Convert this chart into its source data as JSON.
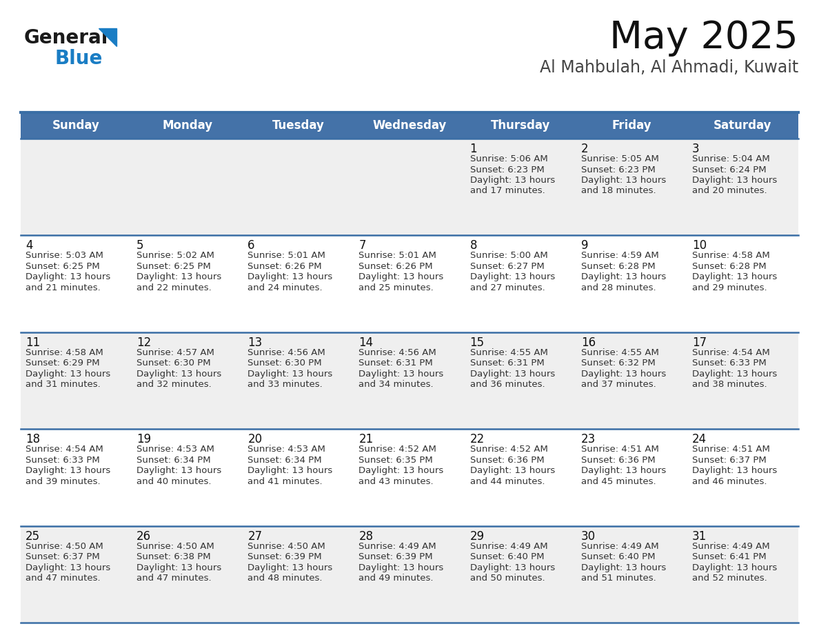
{
  "title": "May 2025",
  "subtitle": "Al Mahbulah, Al Ahmadi, Kuwait",
  "days_of_week": [
    "Sunday",
    "Monday",
    "Tuesday",
    "Wednesday",
    "Thursday",
    "Friday",
    "Saturday"
  ],
  "header_bg": "#4472a8",
  "header_text": "#ffffff",
  "cell_bg_odd": "#efefef",
  "cell_bg_even": "#ffffff",
  "grid_line_color": "#3a6ea5",
  "text_color": "#333333",
  "day_num_color": "#111111",
  "calendar_data": [
    [
      null,
      null,
      null,
      null,
      {
        "day": 1,
        "sunrise": "5:06 AM",
        "sunset": "6:23 PM",
        "daylight": "13 hours",
        "daylight2": "and 17 minutes."
      },
      {
        "day": 2,
        "sunrise": "5:05 AM",
        "sunset": "6:23 PM",
        "daylight": "13 hours",
        "daylight2": "and 18 minutes."
      },
      {
        "day": 3,
        "sunrise": "5:04 AM",
        "sunset": "6:24 PM",
        "daylight": "13 hours",
        "daylight2": "and 20 minutes."
      }
    ],
    [
      {
        "day": 4,
        "sunrise": "5:03 AM",
        "sunset": "6:25 PM",
        "daylight": "13 hours",
        "daylight2": "and 21 minutes."
      },
      {
        "day": 5,
        "sunrise": "5:02 AM",
        "sunset": "6:25 PM",
        "daylight": "13 hours",
        "daylight2": "and 22 minutes."
      },
      {
        "day": 6,
        "sunrise": "5:01 AM",
        "sunset": "6:26 PM",
        "daylight": "13 hours",
        "daylight2": "and 24 minutes."
      },
      {
        "day": 7,
        "sunrise": "5:01 AM",
        "sunset": "6:26 PM",
        "daylight": "13 hours",
        "daylight2": "and 25 minutes."
      },
      {
        "day": 8,
        "sunrise": "5:00 AM",
        "sunset": "6:27 PM",
        "daylight": "13 hours",
        "daylight2": "and 27 minutes."
      },
      {
        "day": 9,
        "sunrise": "4:59 AM",
        "sunset": "6:28 PM",
        "daylight": "13 hours",
        "daylight2": "and 28 minutes."
      },
      {
        "day": 10,
        "sunrise": "4:58 AM",
        "sunset": "6:28 PM",
        "daylight": "13 hours",
        "daylight2": "and 29 minutes."
      }
    ],
    [
      {
        "day": 11,
        "sunrise": "4:58 AM",
        "sunset": "6:29 PM",
        "daylight": "13 hours",
        "daylight2": "and 31 minutes."
      },
      {
        "day": 12,
        "sunrise": "4:57 AM",
        "sunset": "6:30 PM",
        "daylight": "13 hours",
        "daylight2": "and 32 minutes."
      },
      {
        "day": 13,
        "sunrise": "4:56 AM",
        "sunset": "6:30 PM",
        "daylight": "13 hours",
        "daylight2": "and 33 minutes."
      },
      {
        "day": 14,
        "sunrise": "4:56 AM",
        "sunset": "6:31 PM",
        "daylight": "13 hours",
        "daylight2": "and 34 minutes."
      },
      {
        "day": 15,
        "sunrise": "4:55 AM",
        "sunset": "6:31 PM",
        "daylight": "13 hours",
        "daylight2": "and 36 minutes."
      },
      {
        "day": 16,
        "sunrise": "4:55 AM",
        "sunset": "6:32 PM",
        "daylight": "13 hours",
        "daylight2": "and 37 minutes."
      },
      {
        "day": 17,
        "sunrise": "4:54 AM",
        "sunset": "6:33 PM",
        "daylight": "13 hours",
        "daylight2": "and 38 minutes."
      }
    ],
    [
      {
        "day": 18,
        "sunrise": "4:54 AM",
        "sunset": "6:33 PM",
        "daylight": "13 hours",
        "daylight2": "and 39 minutes."
      },
      {
        "day": 19,
        "sunrise": "4:53 AM",
        "sunset": "6:34 PM",
        "daylight": "13 hours",
        "daylight2": "and 40 minutes."
      },
      {
        "day": 20,
        "sunrise": "4:53 AM",
        "sunset": "6:34 PM",
        "daylight": "13 hours",
        "daylight2": "and 41 minutes."
      },
      {
        "day": 21,
        "sunrise": "4:52 AM",
        "sunset": "6:35 PM",
        "daylight": "13 hours",
        "daylight2": "and 43 minutes."
      },
      {
        "day": 22,
        "sunrise": "4:52 AM",
        "sunset": "6:36 PM",
        "daylight": "13 hours",
        "daylight2": "and 44 minutes."
      },
      {
        "day": 23,
        "sunrise": "4:51 AM",
        "sunset": "6:36 PM",
        "daylight": "13 hours",
        "daylight2": "and 45 minutes."
      },
      {
        "day": 24,
        "sunrise": "4:51 AM",
        "sunset": "6:37 PM",
        "daylight": "13 hours",
        "daylight2": "and 46 minutes."
      }
    ],
    [
      {
        "day": 25,
        "sunrise": "4:50 AM",
        "sunset": "6:37 PM",
        "daylight": "13 hours",
        "daylight2": "and 47 minutes."
      },
      {
        "day": 26,
        "sunrise": "4:50 AM",
        "sunset": "6:38 PM",
        "daylight": "13 hours",
        "daylight2": "and 47 minutes."
      },
      {
        "day": 27,
        "sunrise": "4:50 AM",
        "sunset": "6:39 PM",
        "daylight": "13 hours",
        "daylight2": "and 48 minutes."
      },
      {
        "day": 28,
        "sunrise": "4:49 AM",
        "sunset": "6:39 PM",
        "daylight": "13 hours",
        "daylight2": "and 49 minutes."
      },
      {
        "day": 29,
        "sunrise": "4:49 AM",
        "sunset": "6:40 PM",
        "daylight": "13 hours",
        "daylight2": "and 50 minutes."
      },
      {
        "day": 30,
        "sunrise": "4:49 AM",
        "sunset": "6:40 PM",
        "daylight": "13 hours",
        "daylight2": "and 51 minutes."
      },
      {
        "day": 31,
        "sunrise": "4:49 AM",
        "sunset": "6:41 PM",
        "daylight": "13 hours",
        "daylight2": "and 52 minutes."
      }
    ]
  ],
  "logo_text1": "General",
  "logo_text2": "Blue",
  "logo_color1": "#1a1a1a",
  "logo_color2": "#1a7dc4",
  "logo_triangle_color": "#1a7dc4",
  "title_fontsize": 40,
  "subtitle_fontsize": 17,
  "header_fontsize": 12,
  "day_num_fontsize": 12,
  "cell_text_fontsize": 9.5
}
